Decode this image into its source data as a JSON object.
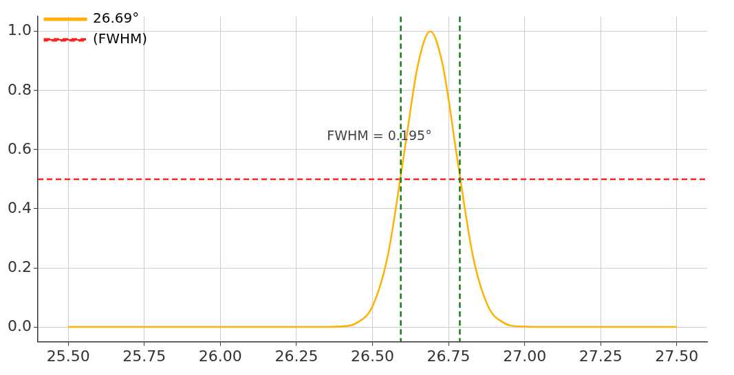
{
  "chart_data": {
    "type": "line",
    "series": [
      {
        "name": "26.69°",
        "color": "#ffb000",
        "x": [
          25.5,
          26.0,
          26.3,
          26.4,
          26.45,
          26.5,
          26.55,
          26.6,
          26.65,
          26.69,
          26.73,
          26.78,
          26.83,
          26.88,
          26.93,
          26.98,
          27.1,
          27.5
        ],
        "values": [
          0,
          0,
          0,
          0.002,
          0.015,
          0.07,
          0.24,
          0.56,
          0.89,
          1.0,
          0.89,
          0.56,
          0.24,
          0.07,
          0.015,
          0.002,
          0,
          0
        ]
      },
      {
        "name": "(FWHM)",
        "color": "#ff2020",
        "x": [
          25.4,
          27.6
        ],
        "values": [
          0.5,
          0.5
        ],
        "line_style": "dashed"
      }
    ],
    "ref_lines": [
      {
        "axis": "x",
        "value": 26.593,
        "color": "#108010",
        "line_style": "dashed"
      },
      {
        "axis": "x",
        "value": 26.787,
        "color": "#108010",
        "line_style": "dashed"
      }
    ],
    "annotations": [
      "FWHM = 0.195°"
    ],
    "xlim": [
      25.4,
      27.6
    ],
    "xticks": [
      {
        "value": 25.5,
        "label": "25.50"
      },
      {
        "value": 25.75,
        "label": "25.75"
      },
      {
        "value": 26,
        "label": "26.00"
      },
      {
        "value": 26.25,
        "label": "26.25"
      },
      {
        "value": 26.5,
        "label": "26.50"
      },
      {
        "value": 26.75,
        "label": "26.75"
      },
      {
        "value": 27,
        "label": "27.00"
      },
      {
        "value": 27.25,
        "label": "27.25"
      },
      {
        "value": 27.5,
        "label": "27.50"
      }
    ],
    "ylim": [
      -0.05,
      1.05
    ],
    "yticks": [
      {
        "value": 0,
        "label": "0.0"
      },
      {
        "value": 0.2,
        "label": "0.2"
      },
      {
        "value": 0.4,
        "label": "0.4"
      },
      {
        "value": 0.6,
        "label": "0.6"
      },
      {
        "value": 0.8,
        "label": "0.8"
      },
      {
        "value": 1,
        "label": "1.0"
      }
    ],
    "grid": true,
    "legend": "top left",
    "marker": "none"
  }
}
